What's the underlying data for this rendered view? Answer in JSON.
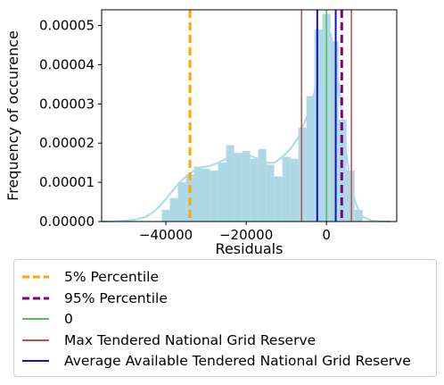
{
  "chart_data": {
    "type": "histogram",
    "xlabel": "Residuals",
    "ylabel": "Frequency of occurence",
    "xlim": [
      -56000,
      17500
    ],
    "ylim": [
      0,
      5.4e-05
    ],
    "xticks": [
      -40000,
      -20000,
      0
    ],
    "xtick_labels": [
      "−40000",
      "−20000",
      "0"
    ],
    "yticks": [
      0,
      1e-05,
      2e-05,
      3e-05,
      4e-05,
      5e-05
    ],
    "ytick_labels": [
      "0.00000",
      "0.00001",
      "0.00002",
      "0.00003",
      "0.00004",
      "0.00005"
    ],
    "bar_color": "#add8e6",
    "kde_color": "#add8e6",
    "bins": [
      {
        "x0": -41000,
        "x1": -39000,
        "y": 3e-06
      },
      {
        "x0": -39000,
        "x1": -37000,
        "y": 6e-06
      },
      {
        "x0": -37000,
        "x1": -35000,
        "y": 1e-05
      },
      {
        "x0": -35000,
        "x1": -33000,
        "y": 1.2e-05
      },
      {
        "x0": -33000,
        "x1": -31000,
        "y": 1.4e-05
      },
      {
        "x0": -31000,
        "x1": -29000,
        "y": 1.35e-05
      },
      {
        "x0": -29000,
        "x1": -27000,
        "y": 1.3e-05
      },
      {
        "x0": -27000,
        "x1": -25000,
        "y": 1.5e-05
      },
      {
        "x0": -25000,
        "x1": -23000,
        "y": 1.95e-05
      },
      {
        "x0": -23000,
        "x1": -21000,
        "y": 1.75e-05
      },
      {
        "x0": -21000,
        "x1": -19000,
        "y": 1.8e-05
      },
      {
        "x0": -19000,
        "x1": -17000,
        "y": 1.6e-05
      },
      {
        "x0": -17000,
        "x1": -15000,
        "y": 1.85e-05
      },
      {
        "x0": -15000,
        "x1": -13000,
        "y": 1.45e-05
      },
      {
        "x0": -13000,
        "x1": -11000,
        "y": 1.15e-05
      },
      {
        "x0": -11000,
        "x1": -9000,
        "y": 1.65e-05
      },
      {
        "x0": -9000,
        "x1": -7000,
        "y": 1.6e-05
      },
      {
        "x0": -7000,
        "x1": -5000,
        "y": 2.4e-05
      },
      {
        "x0": -5000,
        "x1": -3000,
        "y": 3.2e-05
      },
      {
        "x0": -3000,
        "x1": -1000,
        "y": 4.9e-05
      },
      {
        "x0": -1000,
        "x1": 1000,
        "y": 5.3e-05
      },
      {
        "x0": 1000,
        "x1": 3000,
        "y": 4.6e-05
      },
      {
        "x0": 3000,
        "x1": 5000,
        "y": 2.6e-05
      },
      {
        "x0": 5000,
        "x1": 7000,
        "y": 1.3e-05
      },
      {
        "x0": 7000,
        "x1": 9000,
        "y": 3e-06
      }
    ],
    "kde": {
      "x": [
        -56000,
        -52000,
        -48000,
        -45000,
        -43000,
        -41000,
        -39000,
        -37000,
        -35000,
        -33000,
        -31000,
        -29000,
        -27000,
        -25000,
        -23000,
        -21000,
        -19000,
        -17000,
        -15000,
        -13000,
        -11000,
        -9000,
        -7000,
        -5000,
        -3000,
        -2000,
        -1000,
        0,
        1000,
        2000,
        3000,
        4000,
        5000,
        6000,
        7000,
        8000,
        9000,
        11000,
        13000,
        16000
      ],
      "y": [
        0,
        1e-07,
        4e-07,
        1.2e-06,
        2.5e-06,
        4.5e-06,
        7e-06,
        9.5e-06,
        1.15e-05,
        1.3e-05,
        1.38e-05,
        1.42e-05,
        1.5e-05,
        1.6e-05,
        1.68e-05,
        1.7e-05,
        1.68e-05,
        1.6e-05,
        1.5e-05,
        1.5e-05,
        1.65e-05,
        1.85e-05,
        2.15e-05,
        2.65e-05,
        3.3e-05,
        4e-05,
        4.6e-05,
        4.95e-05,
        4.8e-05,
        4.3e-05,
        3.5e-05,
        2.6e-05,
        1.7e-05,
        1e-05,
        5.5e-06,
        2.8e-06,
        1.2e-06,
        3e-07,
        1e-07,
        0
      ]
    },
    "vlines": [
      {
        "name": "5% Percentile",
        "x": -34000,
        "color": "#ffa500",
        "style": "dashed",
        "width": 3
      },
      {
        "name": "95% Percentile",
        "x": 3800,
        "color": "#800080",
        "style": "dashed",
        "width": 3
      },
      {
        "name": "0",
        "x": 0,
        "color": "#5cb85c",
        "style": "solid",
        "width": 1.5
      },
      {
        "name": "Max Tendered National Grid Reserve",
        "x": -6200,
        "color": "#c0504d",
        "style": "solid",
        "width": 1.5
      },
      {
        "name": "Max Tendered National Grid Reserve",
        "x": 6200,
        "color": "#c0504d",
        "style": "solid",
        "width": 1.5
      },
      {
        "name": "Average Available Tendered National Grid Reserve",
        "x": -2300,
        "color": "#1010d0",
        "style": "solid",
        "width": 2
      },
      {
        "name": "Average Available Tendered National Grid Reserve",
        "x": 2300,
        "color": "#1010d0",
        "style": "solid",
        "width": 2
      }
    ]
  },
  "legend": {
    "items": [
      {
        "label": "5% Percentile",
        "color": "#ffa500",
        "style": "dashed"
      },
      {
        "label": "95% Percentile",
        "color": "#800080",
        "style": "dashed"
      },
      {
        "label": "0",
        "color": "#5cb85c",
        "style": "solid"
      },
      {
        "label": "Max Tendered National Grid Reserve",
        "color": "#c0504d",
        "style": "solid"
      },
      {
        "label": "Average Available Tendered National Grid Reserve",
        "color": "#1010d0",
        "style": "solid"
      }
    ]
  }
}
